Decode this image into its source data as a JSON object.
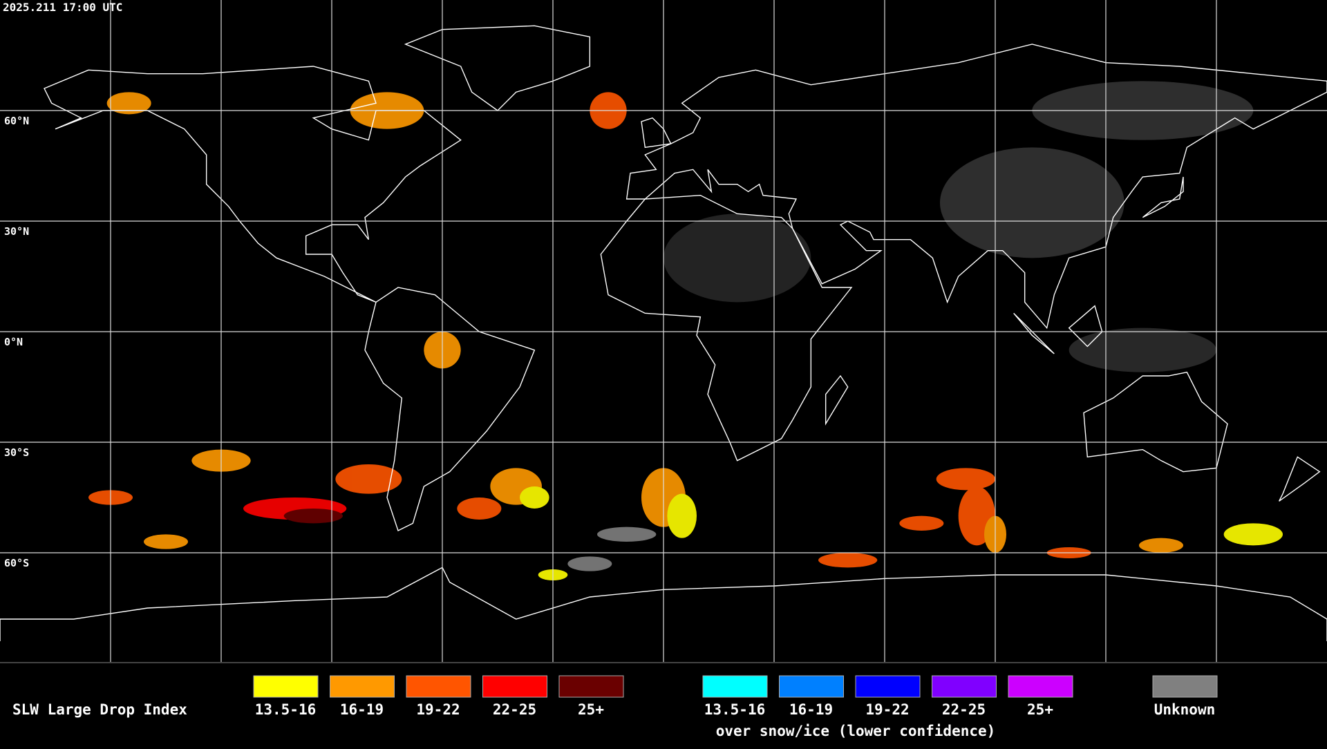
{
  "header": {
    "timestamp": "2025.211 17:00 UTC"
  },
  "map": {
    "latitude_labels": [
      "60°N",
      "30°N",
      "0°N",
      "30°S",
      "60°S"
    ]
  },
  "legend": {
    "title": "SLW Large Drop Index",
    "items": [
      {
        "label": "13.5-16",
        "color": "#ffff00"
      },
      {
        "label": "16-19",
        "color": "#ff9900"
      },
      {
        "label": "19-22",
        "color": "#ff5500"
      },
      {
        "label": "22-25",
        "color": "#ff0000"
      },
      {
        "label": "25+",
        "color": "#6a0000"
      }
    ],
    "snow_items": [
      {
        "label": "13.5-16",
        "color": "#00ffff"
      },
      {
        "label": "16-19",
        "color": "#0080ff"
      },
      {
        "label": "19-22",
        "color": "#0000ff"
      },
      {
        "label": "22-25",
        "color": "#8000ff"
      },
      {
        "label": "25+",
        "color": "#cc00ff"
      }
    ],
    "snow_note": "over snow/ice (lower confidence)",
    "unknown": {
      "label": "Unknown",
      "color": "#808080"
    }
  }
}
